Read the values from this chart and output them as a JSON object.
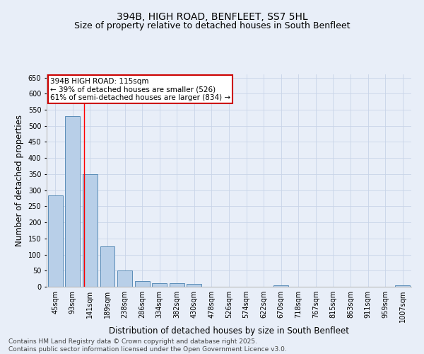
{
  "title": "394B, HIGH ROAD, BENFLEET, SS7 5HL",
  "subtitle": "Size of property relative to detached houses in South Benfleet",
  "xlabel": "Distribution of detached houses by size in South Benfleet",
  "ylabel": "Number of detached properties",
  "footer_line1": "Contains HM Land Registry data © Crown copyright and database right 2025.",
  "footer_line2": "Contains public sector information licensed under the Open Government Licence v3.0.",
  "categories": [
    "45sqm",
    "93sqm",
    "141sqm",
    "189sqm",
    "238sqm",
    "286sqm",
    "334sqm",
    "382sqm",
    "430sqm",
    "478sqm",
    "526sqm",
    "574sqm",
    "622sqm",
    "670sqm",
    "718sqm",
    "767sqm",
    "815sqm",
    "863sqm",
    "911sqm",
    "959sqm",
    "1007sqm"
  ],
  "values": [
    283,
    530,
    350,
    125,
    50,
    17,
    12,
    11,
    8,
    0,
    0,
    0,
    0,
    5,
    0,
    0,
    0,
    0,
    0,
    0,
    5
  ],
  "bar_color": "#b8cfe8",
  "bar_edge_color": "#5b8db8",
  "red_line_x": 1.65,
  "annotation_text": "394B HIGH ROAD: 115sqm\n← 39% of detached houses are smaller (526)\n61% of semi-detached houses are larger (834) →",
  "annotation_box_facecolor": "#ffffff",
  "annotation_box_edgecolor": "#cc0000",
  "annotation_text_color": "#000000",
  "ylim": [
    0,
    660
  ],
  "yticks": [
    0,
    50,
    100,
    150,
    200,
    250,
    300,
    350,
    400,
    450,
    500,
    550,
    600,
    650
  ],
  "grid_color": "#c8d4e8",
  "bg_color": "#e8eef8",
  "title_fontsize": 10,
  "subtitle_fontsize": 9,
  "xlabel_fontsize": 8.5,
  "ylabel_fontsize": 8.5,
  "tick_fontsize": 7,
  "annotation_fontsize": 7.5,
  "footer_fontsize": 6.5
}
